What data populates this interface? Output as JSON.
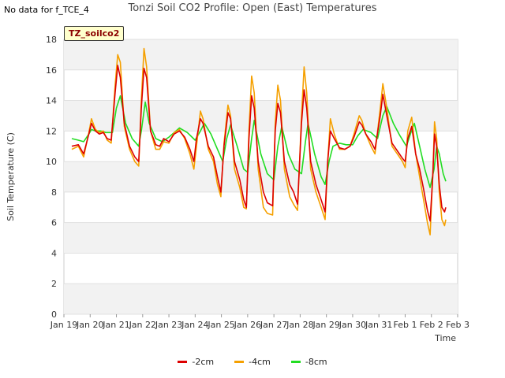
{
  "header": {
    "no_data_text": "No data for f_TCE_4",
    "badge_text": "TZ_soilco2"
  },
  "chart_data": {
    "type": "line",
    "title": "Tonzi Soil CO2 Profile: Open (East) Temperatures",
    "xlabel": "Time",
    "ylabel": "Soil Temperature (C)",
    "ylim": [
      0,
      18
    ],
    "yticks": [
      0,
      2,
      4,
      6,
      8,
      10,
      12,
      14,
      16,
      18
    ],
    "xlim": [
      0,
      15
    ],
    "xtick_labels": [
      "Jan 19",
      "Jan 20",
      "Jan 21",
      "Jan 22",
      "Jan 23",
      "Jan 24",
      "Jan 25",
      "Jan 26",
      "Jan 27",
      "Jan 28",
      "Jan 29",
      "Jan 30",
      "Jan 31",
      "Feb 1",
      "Feb 2",
      "Feb 3"
    ],
    "grid": "horizontal bands",
    "legend_position": "bottom",
    "series": [
      {
        "name": "-2cm",
        "color": "#dd0000",
        "points": [
          [
            0.3,
            11.0
          ],
          [
            0.55,
            11.1
          ],
          [
            0.75,
            10.5
          ],
          [
            0.95,
            11.8
          ],
          [
            1.05,
            12.5
          ],
          [
            1.2,
            12.0
          ],
          [
            1.35,
            11.8
          ],
          [
            1.5,
            11.9
          ],
          [
            1.65,
            11.5
          ],
          [
            1.8,
            11.4
          ],
          [
            1.95,
            14.5
          ],
          [
            2.05,
            16.3
          ],
          [
            2.15,
            15.5
          ],
          [
            2.3,
            12.5
          ],
          [
            2.5,
            11.0
          ],
          [
            2.7,
            10.3
          ],
          [
            2.85,
            10.0
          ],
          [
            2.95,
            13.5
          ],
          [
            3.05,
            16.1
          ],
          [
            3.15,
            15.5
          ],
          [
            3.3,
            12.0
          ],
          [
            3.5,
            11.1
          ],
          [
            3.65,
            11.0
          ],
          [
            3.8,
            11.5
          ],
          [
            4.0,
            11.3
          ],
          [
            4.2,
            11.8
          ],
          [
            4.4,
            12.0
          ],
          [
            4.6,
            11.6
          ],
          [
            4.8,
            10.8
          ],
          [
            4.95,
            10.0
          ],
          [
            5.05,
            11.5
          ],
          [
            5.2,
            12.8
          ],
          [
            5.3,
            12.5
          ],
          [
            5.5,
            11.0
          ],
          [
            5.7,
            10.3
          ],
          [
            5.85,
            9.0
          ],
          [
            5.98,
            8.0
          ],
          [
            6.1,
            11.0
          ],
          [
            6.25,
            13.2
          ],
          [
            6.35,
            12.8
          ],
          [
            6.5,
            10.0
          ],
          [
            6.7,
            8.8
          ],
          [
            6.85,
            7.5
          ],
          [
            6.95,
            7.0
          ],
          [
            7.05,
            11.5
          ],
          [
            7.15,
            14.3
          ],
          [
            7.25,
            13.5
          ],
          [
            7.4,
            10.0
          ],
          [
            7.6,
            8.0
          ],
          [
            7.75,
            7.3
          ],
          [
            7.95,
            7.1
          ],
          [
            8.05,
            12.0
          ],
          [
            8.15,
            13.8
          ],
          [
            8.25,
            13.2
          ],
          [
            8.4,
            10.0
          ],
          [
            8.6,
            8.5
          ],
          [
            8.75,
            8.0
          ],
          [
            8.9,
            7.2
          ],
          [
            9.05,
            12.5
          ],
          [
            9.15,
            14.7
          ],
          [
            9.25,
            13.5
          ],
          [
            9.4,
            10.0
          ],
          [
            9.6,
            8.5
          ],
          [
            9.8,
            7.5
          ],
          [
            9.95,
            6.7
          ],
          [
            10.05,
            10.0
          ],
          [
            10.15,
            12.0
          ],
          [
            10.3,
            11.5
          ],
          [
            10.5,
            10.9
          ],
          [
            10.7,
            10.8
          ],
          [
            10.9,
            11.0
          ],
          [
            11.05,
            11.6
          ],
          [
            11.25,
            12.6
          ],
          [
            11.35,
            12.4
          ],
          [
            11.5,
            11.8
          ],
          [
            11.7,
            11.3
          ],
          [
            11.85,
            10.8
          ],
          [
            12.05,
            13.0
          ],
          [
            12.15,
            14.4
          ],
          [
            12.3,
            13.0
          ],
          [
            12.5,
            11.2
          ],
          [
            12.7,
            10.7
          ],
          [
            12.9,
            10.2
          ],
          [
            13.0,
            10.0
          ],
          [
            13.1,
            11.5
          ],
          [
            13.25,
            12.3
          ],
          [
            13.4,
            10.5
          ],
          [
            13.55,
            9.5
          ],
          [
            13.7,
            8.2
          ],
          [
            13.85,
            6.8
          ],
          [
            13.95,
            6.1
          ],
          [
            14.05,
            9.0
          ],
          [
            14.12,
            11.8
          ],
          [
            14.2,
            11.0
          ],
          [
            14.3,
            8.5
          ],
          [
            14.4,
            7.0
          ],
          [
            14.5,
            6.7
          ],
          [
            14.55,
            7.0
          ]
        ]
      },
      {
        "name": "-4cm",
        "color": "#f5a000",
        "points": [
          [
            0.3,
            10.8
          ],
          [
            0.55,
            11.0
          ],
          [
            0.75,
            10.3
          ],
          [
            0.95,
            11.9
          ],
          [
            1.05,
            12.8
          ],
          [
            1.2,
            12.1
          ],
          [
            1.35,
            11.9
          ],
          [
            1.5,
            12.0
          ],
          [
            1.65,
            11.4
          ],
          [
            1.8,
            11.2
          ],
          [
            1.95,
            15.0
          ],
          [
            2.05,
            17.0
          ],
          [
            2.15,
            16.5
          ],
          [
            2.3,
            12.3
          ],
          [
            2.5,
            10.8
          ],
          [
            2.7,
            10.0
          ],
          [
            2.85,
            9.7
          ],
          [
            2.95,
            14.0
          ],
          [
            3.05,
            17.4
          ],
          [
            3.15,
            16.2
          ],
          [
            3.3,
            12.0
          ],
          [
            3.5,
            10.8
          ],
          [
            3.65,
            10.8
          ],
          [
            3.8,
            11.3
          ],
          [
            4.0,
            11.2
          ],
          [
            4.2,
            11.9
          ],
          [
            4.4,
            12.1
          ],
          [
            4.6,
            11.5
          ],
          [
            4.8,
            10.5
          ],
          [
            4.95,
            9.5
          ],
          [
            5.05,
            11.0
          ],
          [
            5.2,
            13.3
          ],
          [
            5.3,
            12.8
          ],
          [
            5.5,
            10.8
          ],
          [
            5.7,
            10.0
          ],
          [
            5.85,
            8.5
          ],
          [
            5.98,
            7.7
          ],
          [
            6.1,
            11.2
          ],
          [
            6.25,
            13.7
          ],
          [
            6.35,
            13.0
          ],
          [
            6.5,
            9.5
          ],
          [
            6.7,
            8.3
          ],
          [
            6.85,
            7.0
          ],
          [
            6.95,
            6.9
          ],
          [
            7.05,
            12.0
          ],
          [
            7.15,
            15.6
          ],
          [
            7.25,
            14.5
          ],
          [
            7.4,
            9.5
          ],
          [
            7.6,
            7.0
          ],
          [
            7.75,
            6.6
          ],
          [
            7.95,
            6.5
          ],
          [
            8.05,
            12.5
          ],
          [
            8.15,
            15.0
          ],
          [
            8.25,
            14.0
          ],
          [
            8.4,
            9.5
          ],
          [
            8.6,
            7.7
          ],
          [
            8.75,
            7.2
          ],
          [
            8.9,
            6.8
          ],
          [
            9.05,
            13.0
          ],
          [
            9.15,
            16.2
          ],
          [
            9.25,
            14.5
          ],
          [
            9.4,
            9.5
          ],
          [
            9.6,
            8.0
          ],
          [
            9.8,
            7.0
          ],
          [
            9.95,
            6.2
          ],
          [
            10.05,
            10.0
          ],
          [
            10.15,
            12.8
          ],
          [
            10.3,
            11.8
          ],
          [
            10.5,
            10.8
          ],
          [
            10.7,
            10.8
          ],
          [
            10.9,
            11.0
          ],
          [
            11.05,
            11.8
          ],
          [
            11.25,
            13.0
          ],
          [
            11.35,
            12.7
          ],
          [
            11.5,
            11.8
          ],
          [
            11.7,
            11.0
          ],
          [
            11.85,
            10.5
          ],
          [
            12.05,
            13.5
          ],
          [
            12.15,
            15.1
          ],
          [
            12.3,
            13.5
          ],
          [
            12.5,
            11.0
          ],
          [
            12.7,
            10.5
          ],
          [
            12.9,
            10.0
          ],
          [
            13.0,
            9.6
          ],
          [
            13.1,
            12.0
          ],
          [
            13.25,
            12.9
          ],
          [
            13.4,
            10.5
          ],
          [
            13.55,
            9.0
          ],
          [
            13.7,
            7.5
          ],
          [
            13.85,
            6.0
          ],
          [
            13.95,
            5.2
          ],
          [
            14.05,
            9.0
          ],
          [
            14.12,
            12.6
          ],
          [
            14.2,
            11.5
          ],
          [
            14.3,
            8.0
          ],
          [
            14.4,
            6.2
          ],
          [
            14.5,
            5.8
          ],
          [
            14.55,
            6.2
          ]
        ]
      },
      {
        "name": "-8cm",
        "color": "#22dd22",
        "points": [
          [
            0.3,
            11.5
          ],
          [
            0.55,
            11.4
          ],
          [
            0.75,
            11.3
          ],
          [
            0.95,
            11.8
          ],
          [
            1.05,
            12.1
          ],
          [
            1.2,
            12.0
          ],
          [
            1.4,
            12.0
          ],
          [
            1.6,
            11.9
          ],
          [
            1.85,
            11.9
          ],
          [
            2.0,
            13.5
          ],
          [
            2.15,
            14.3
          ],
          [
            2.35,
            12.5
          ],
          [
            2.6,
            11.5
          ],
          [
            2.85,
            11.0
          ],
          [
            2.95,
            12.0
          ],
          [
            3.1,
            13.9
          ],
          [
            3.25,
            12.5
          ],
          [
            3.5,
            11.5
          ],
          [
            3.75,
            11.3
          ],
          [
            4.0,
            11.6
          ],
          [
            4.2,
            11.9
          ],
          [
            4.4,
            12.2
          ],
          [
            4.7,
            11.9
          ],
          [
            5.0,
            11.4
          ],
          [
            5.2,
            12.0
          ],
          [
            5.35,
            12.5
          ],
          [
            5.6,
            11.8
          ],
          [
            5.85,
            10.8
          ],
          [
            6.05,
            10.0
          ],
          [
            6.2,
            11.5
          ],
          [
            6.35,
            12.4
          ],
          [
            6.6,
            11.0
          ],
          [
            6.85,
            9.5
          ],
          [
            7.0,
            9.3
          ],
          [
            7.15,
            11.5
          ],
          [
            7.25,
            12.7
          ],
          [
            7.5,
            10.5
          ],
          [
            7.75,
            9.2
          ],
          [
            8.0,
            8.8
          ],
          [
            8.15,
            11.0
          ],
          [
            8.3,
            12.3
          ],
          [
            8.55,
            10.5
          ],
          [
            8.8,
            9.5
          ],
          [
            9.05,
            9.2
          ],
          [
            9.2,
            11.3
          ],
          [
            9.3,
            12.5
          ],
          [
            9.55,
            10.5
          ],
          [
            9.8,
            9.0
          ],
          [
            9.95,
            8.5
          ],
          [
            10.1,
            10.0
          ],
          [
            10.25,
            11.0
          ],
          [
            10.5,
            11.2
          ],
          [
            10.75,
            11.1
          ],
          [
            11.0,
            11.1
          ],
          [
            11.2,
            11.7
          ],
          [
            11.4,
            12.1
          ],
          [
            11.7,
            11.9
          ],
          [
            11.95,
            11.5
          ],
          [
            12.15,
            13.0
          ],
          [
            12.3,
            13.6
          ],
          [
            12.55,
            12.5
          ],
          [
            12.8,
            11.7
          ],
          [
            13.05,
            11.0
          ],
          [
            13.2,
            11.8
          ],
          [
            13.35,
            12.5
          ],
          [
            13.55,
            11.0
          ],
          [
            13.75,
            9.5
          ],
          [
            13.95,
            8.3
          ],
          [
            14.1,
            9.5
          ],
          [
            14.2,
            11.0
          ],
          [
            14.3,
            10.5
          ],
          [
            14.45,
            9.2
          ],
          [
            14.55,
            8.7
          ]
        ]
      }
    ]
  }
}
